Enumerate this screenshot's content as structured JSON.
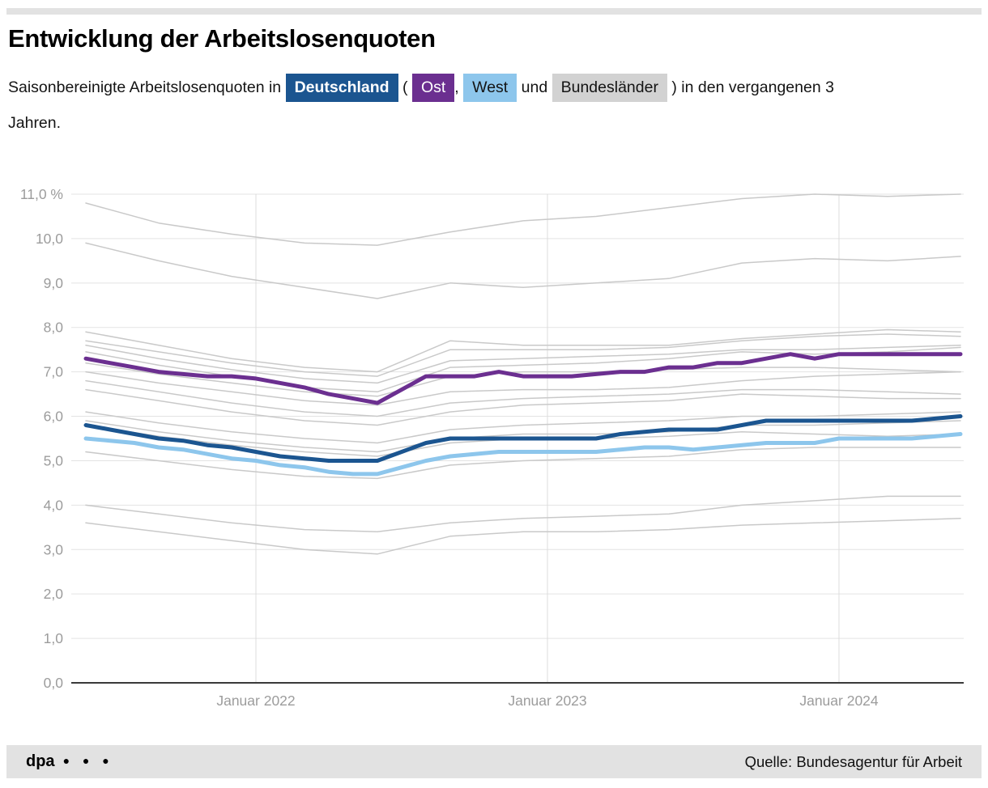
{
  "header": {
    "title": "Entwicklung der Arbeitslosenquoten",
    "subtitle_prefix": "Saisonbereinigte Arbeitslosenquoten in",
    "paren_open": "(",
    "comma": ",",
    "und": "und",
    "suffix_line1": ") in den vergangenen 3",
    "suffix_line2": "Jahren.",
    "legend": {
      "deutschland": {
        "label": "Deutschland",
        "color": "#1b5590"
      },
      "ost": {
        "label": "Ost",
        "color": "#6b2f90"
      },
      "west": {
        "label": "West",
        "color": "#8dc6ec"
      },
      "bundeslaender": {
        "label": "Bundesländer",
        "color": "#d2d2d2"
      }
    }
  },
  "chart_data": {
    "type": "line",
    "title": "Entwicklung der Arbeitslosenquoten",
    "ylim": [
      0,
      11
    ],
    "grid": true,
    "legend_position": "inline-in-subtitle",
    "y_ticks": [
      {
        "v": 11,
        "label": "11,0 %"
      },
      {
        "v": 10,
        "label": "10,0"
      },
      {
        "v": 9,
        "label": "9,0"
      },
      {
        "v": 8,
        "label": "8,0"
      },
      {
        "v": 7,
        "label": "7,0"
      },
      {
        "v": 6,
        "label": "6,0"
      },
      {
        "v": 5,
        "label": "5,0"
      },
      {
        "v": 4,
        "label": "4,0"
      },
      {
        "v": 3,
        "label": "3,0"
      },
      {
        "v": 2,
        "label": "2,0"
      },
      {
        "v": 1,
        "label": "1,0"
      },
      {
        "v": 0,
        "label": "0,0"
      }
    ],
    "x_ticks": [
      {
        "m": 7,
        "label": "Januar 2022"
      },
      {
        "m": 19,
        "label": "Januar 2023"
      },
      {
        "m": 31,
        "label": "Januar 2024"
      }
    ],
    "months_total": 37,
    "series": [
      {
        "name": "Deutschland",
        "color": "#1b5590",
        "values": [
          5.8,
          5.7,
          5.6,
          5.5,
          5.45,
          5.35,
          5.3,
          5.2,
          5.1,
          5.05,
          5.0,
          5.0,
          5.0,
          5.2,
          5.4,
          5.5,
          5.5,
          5.5,
          5.5,
          5.5,
          5.5,
          5.5,
          5.6,
          5.65,
          5.7,
          5.7,
          5.7,
          5.8,
          5.9,
          5.9,
          5.9,
          5.9,
          5.9,
          5.9,
          5.9,
          5.95,
          6.0
        ]
      },
      {
        "name": "Ost",
        "color": "#6b2f90",
        "values": [
          7.3,
          7.2,
          7.1,
          7.0,
          6.95,
          6.9,
          6.9,
          6.85,
          6.75,
          6.65,
          6.5,
          6.4,
          6.3,
          6.6,
          6.9,
          6.9,
          6.9,
          7.0,
          6.9,
          6.9,
          6.9,
          6.95,
          7.0,
          7.0,
          7.1,
          7.1,
          7.2,
          7.2,
          7.3,
          7.4,
          7.3,
          7.4,
          7.4,
          7.4,
          7.4,
          7.4,
          7.4
        ]
      },
      {
        "name": "West",
        "color": "#8dc6ec",
        "values": [
          5.5,
          5.45,
          5.4,
          5.3,
          5.25,
          5.15,
          5.05,
          5.0,
          4.9,
          4.85,
          4.75,
          4.7,
          4.7,
          4.85,
          5.0,
          5.1,
          5.15,
          5.2,
          5.2,
          5.2,
          5.2,
          5.2,
          5.25,
          5.3,
          5.3,
          5.25,
          5.3,
          5.35,
          5.4,
          5.4,
          5.4,
          5.5,
          5.5,
          5.5,
          5.5,
          5.55,
          5.6
        ]
      }
    ],
    "bundeslaender": {
      "name": "Bundesländer",
      "color": "#c9c9c9",
      "series": [
        [
          10.8,
          10.35,
          10.1,
          9.9,
          9.85,
          10.15,
          10.4,
          10.5,
          10.7,
          10.9,
          11.0,
          10.95,
          11.0
        ],
        [
          9.9,
          9.5,
          9.15,
          8.9,
          8.65,
          9.0,
          8.9,
          9.0,
          9.1,
          9.45,
          9.55,
          9.5,
          9.6
        ],
        [
          7.9,
          7.6,
          7.3,
          7.1,
          7.0,
          7.7,
          7.6,
          7.6,
          7.6,
          7.75,
          7.85,
          7.95,
          7.9
        ],
        [
          7.7,
          7.45,
          7.2,
          7.0,
          6.9,
          7.5,
          7.5,
          7.5,
          7.55,
          7.7,
          7.8,
          7.85,
          7.8
        ],
        [
          7.6,
          7.3,
          7.05,
          6.85,
          6.75,
          7.25,
          7.3,
          7.35,
          7.4,
          7.5,
          7.5,
          7.55,
          7.6
        ],
        [
          7.45,
          7.15,
          6.9,
          6.65,
          6.55,
          7.1,
          7.15,
          7.2,
          7.3,
          7.45,
          7.4,
          7.45,
          7.55
        ],
        [
          7.2,
          6.95,
          6.75,
          6.55,
          6.45,
          6.9,
          7.0,
          7.0,
          7.05,
          7.1,
          7.1,
          7.05,
          7.0
        ],
        [
          7.0,
          6.75,
          6.55,
          6.35,
          6.25,
          6.55,
          6.6,
          6.6,
          6.65,
          6.8,
          6.9,
          6.95,
          7.0
        ],
        [
          6.8,
          6.55,
          6.3,
          6.1,
          6.0,
          6.3,
          6.4,
          6.45,
          6.5,
          6.6,
          6.6,
          6.55,
          6.5
        ],
        [
          6.6,
          6.35,
          6.1,
          5.9,
          5.8,
          6.1,
          6.25,
          6.3,
          6.35,
          6.5,
          6.45,
          6.4,
          6.4
        ],
        [
          6.1,
          5.85,
          5.65,
          5.5,
          5.4,
          5.7,
          5.8,
          5.85,
          5.9,
          6.0,
          6.0,
          6.05,
          6.1
        ],
        [
          5.9,
          5.65,
          5.45,
          5.3,
          5.2,
          5.5,
          5.6,
          5.6,
          5.65,
          5.8,
          5.8,
          5.85,
          5.9
        ],
        [
          5.8,
          5.55,
          5.35,
          5.2,
          5.1,
          5.4,
          5.5,
          5.5,
          5.55,
          5.65,
          5.6,
          5.55,
          5.6
        ],
        [
          5.2,
          5.0,
          4.8,
          4.65,
          4.6,
          4.9,
          5.0,
          5.05,
          5.1,
          5.25,
          5.3,
          5.3,
          5.3
        ],
        [
          4.0,
          3.8,
          3.6,
          3.45,
          3.4,
          3.6,
          3.7,
          3.75,
          3.8,
          4.0,
          4.1,
          4.2,
          4.2
        ],
        [
          3.6,
          3.4,
          3.2,
          3.0,
          2.9,
          3.3,
          3.4,
          3.4,
          3.45,
          3.55,
          3.6,
          3.65,
          3.7
        ]
      ]
    }
  },
  "footer": {
    "brand": "dpa",
    "dots": "● ● ●",
    "source": "Quelle: Bundesagentur für Arbeit"
  }
}
